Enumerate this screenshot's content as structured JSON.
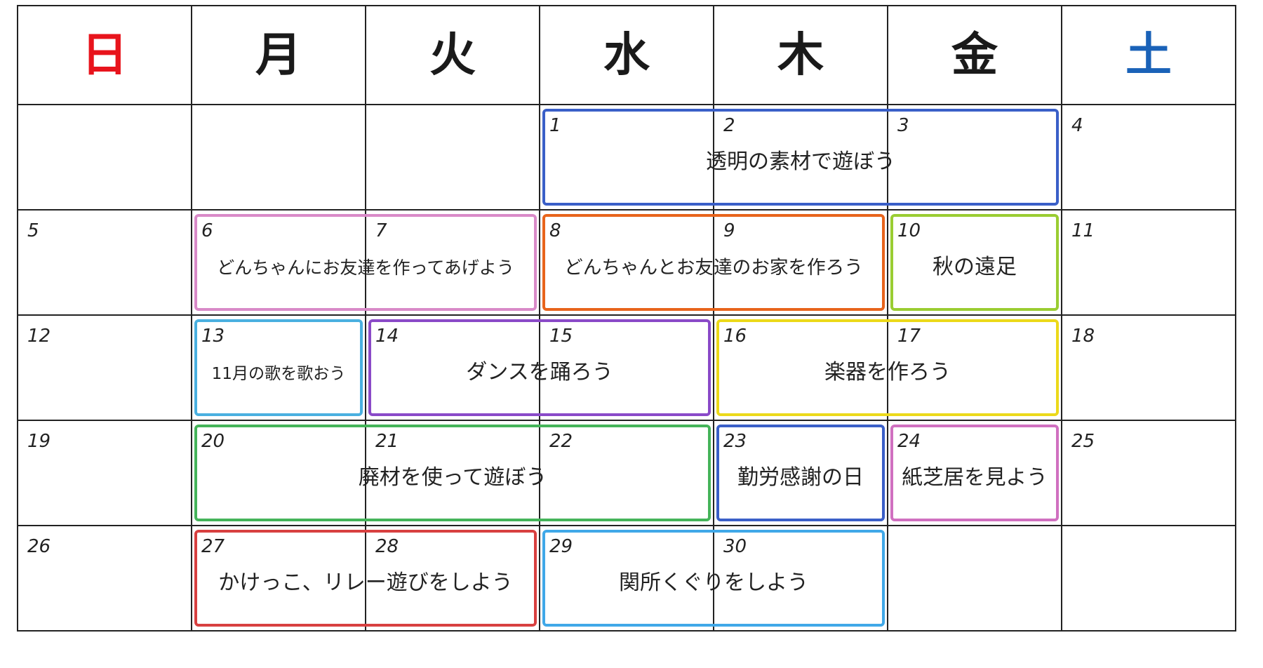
{
  "weekdays": [
    "日",
    "月",
    "火",
    "水",
    "木",
    "金",
    "土"
  ],
  "days": [
    1,
    2,
    3,
    4,
    5,
    6,
    7,
    8,
    9,
    10,
    11,
    12,
    13,
    14,
    15,
    16,
    17,
    18,
    19,
    20,
    21,
    22,
    23,
    24,
    25,
    26,
    27,
    28,
    29,
    30
  ],
  "events": [
    {
      "text": "透明の素材で遊ぼう"
    },
    {
      "text": "どんちゃんにお友達を作ってあげよう"
    },
    {
      "text": "どんちゃんとお友達のお家を作ろう"
    },
    {
      "text": "秋の遠足"
    },
    {
      "text": "11月の歌を歌おう"
    },
    {
      "text": "ダンスを踊ろう"
    },
    {
      "text": "楽器を作ろう"
    },
    {
      "text": "廃材を使って遊ぼう"
    },
    {
      "text": "勤労感謝の日"
    },
    {
      "text": "紙芝居を見よう"
    },
    {
      "text": "かけっこ、リレー遊びをしよう"
    },
    {
      "text": "関所くぐりをしよう"
    }
  ]
}
